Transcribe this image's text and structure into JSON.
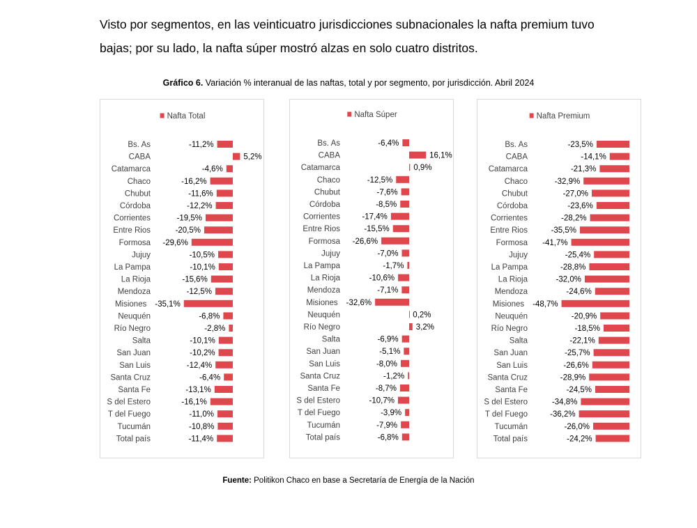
{
  "intro_text": "Visto por segmentos, en las veinticuatro jurisdicciones subnacionales la nafta premium tuvo bajas; por su lado, la nafta súper mostró alzas en solo cuatro distritos.",
  "title_prefix": "Gráfico 6.",
  "title_rest": " Variación % interanual de las naftas, total y por segmento, por jurisdicción. Abril 2024",
  "source_prefix": "Fuente:",
  "source_rest": " Politikon Chaco en base a Secretaría de Energía de la Nación",
  "colors": {
    "bar": "#e0474c",
    "border": "#d9d9d9",
    "label": "#404040"
  },
  "chart_data": [
    {
      "type": "bar",
      "orientation": "horizontal",
      "series_name": "Nafta Total",
      "categories": [
        "Bs. As",
        "CABA",
        "Catamarca",
        "Chaco",
        "Chubut",
        "Córdoba",
        "Corrientes",
        "Entre Rios",
        "Formosa",
        "Jujuy",
        "La Pampa",
        "La Rioja",
        "Mendoza",
        "Misiones",
        "Neuquén",
        "Río Negro",
        "Salta",
        "San Juan",
        "San Luis",
        "Santa Cruz",
        "Santa Fe",
        "S del Estero",
        "T del Fuego",
        "Tucumán",
        "Total país"
      ],
      "values": [
        -11.2,
        5.2,
        -4.6,
        -16.2,
        -11.6,
        -12.2,
        -19.5,
        -20.5,
        -29.6,
        -10.5,
        -10.1,
        -15.6,
        -12.5,
        -35.1,
        -6.8,
        -2.8,
        -10.1,
        -10.2,
        -12.4,
        -6.4,
        -13.1,
        -16.1,
        -11.0,
        -10.8,
        -11.4
      ],
      "value_labels": [
        "-11,2%",
        "5,2%",
        "-4,6%",
        "-16,2%",
        "-11,6%",
        "-12,2%",
        "-19,5%",
        "-20,5%",
        "-29,6%",
        "-10,5%",
        "-10,1%",
        "-15,6%",
        "-12,5%",
        "-35,1%",
        "-6,8%",
        "-2,8%",
        "-10,1%",
        "-10,2%",
        "-12,4%",
        "-6,4%",
        "-13,1%",
        "-16,1%",
        "-11,0%",
        "-10,8%",
        "-11,4%"
      ],
      "legend_position": "top"
    },
    {
      "type": "bar",
      "orientation": "horizontal",
      "series_name": "Nafta Súper",
      "categories": [
        "Bs. As",
        "CABA",
        "Catamarca",
        "Chaco",
        "Chubut",
        "Córdoba",
        "Corrientes",
        "Entre Rios",
        "Formosa",
        "Jujuy",
        "La Pampa",
        "La Rioja",
        "Mendoza",
        "Misiones",
        "Neuquén",
        "Río Negro",
        "Salta",
        "San Juan",
        "San Luis",
        "Santa Cruz",
        "Santa Fe",
        "S del Estero",
        "T del Fuego",
        "Tucumán",
        "Total país"
      ],
      "values": [
        -6.4,
        16.1,
        0.9,
        -12.5,
        -7.6,
        -8.5,
        -17.4,
        -15.5,
        -26.6,
        -7.0,
        -1.7,
        -10.6,
        -7.1,
        -32.6,
        0.2,
        3.2,
        -6.9,
        -5.1,
        -8.0,
        -1.2,
        -8.7,
        -10.7,
        -3.9,
        -7.9,
        -6.8
      ],
      "value_labels": [
        "-6,4%",
        "16,1%",
        "0,9%",
        "-12,5%",
        "-7,6%",
        "-8,5%",
        "-17,4%",
        "-15,5%",
        "-26,6%",
        "-7,0%",
        "-1,7%",
        "-10,6%",
        "-7,1%",
        "-32,6%",
        "0,2%",
        "3,2%",
        "-6,9%",
        "-5,1%",
        "-8,0%",
        "-1,2%",
        "-8,7%",
        "-10,7%",
        "-3,9%",
        "-7,9%",
        "-6,8%"
      ],
      "legend_position": "top"
    },
    {
      "type": "bar",
      "orientation": "horizontal",
      "series_name": "Nafta Premium",
      "categories": [
        "Bs. As",
        "CABA",
        "Catamarca",
        "Chaco",
        "Chubut",
        "Córdoba",
        "Corrientes",
        "Entre Rios",
        "Formosa",
        "Jujuy",
        "La Pampa",
        "La Rioja",
        "Mendoza",
        "Misiones",
        "Neuquén",
        "Río Negro",
        "Salta",
        "San Juan",
        "San Luis",
        "Santa Cruz",
        "Santa Fe",
        "S del Estero",
        "T del Fuego",
        "Tucumán",
        "Total país"
      ],
      "values": [
        -23.5,
        -14.1,
        -21.3,
        -32.9,
        -27.0,
        -23.6,
        -28.2,
        -35.5,
        -41.7,
        -25.4,
        -28.8,
        -32.0,
        -24.6,
        -48.7,
        -20.9,
        -18.5,
        -22.1,
        -25.7,
        -26.6,
        -28.9,
        -24.5,
        -34.8,
        -36.2,
        -26.0,
        -24.2
      ],
      "value_labels": [
        "-23,5%",
        "-14,1%",
        "-21,3%",
        "-32,9%",
        "-27,0%",
        "-23,6%",
        "-28,2%",
        "-35,5%",
        "-41,7%",
        "-25,4%",
        "-28,8%",
        "-32,0%",
        "-24,6%",
        "-48,7%",
        "-20,9%",
        "-18,5%",
        "-22,1%",
        "-25,7%",
        "-26,6%",
        "-28,9%",
        "-24,5%",
        "-34,8%",
        "-36,2%",
        "-26,0%",
        "-24,2%"
      ],
      "legend_position": "top"
    }
  ]
}
